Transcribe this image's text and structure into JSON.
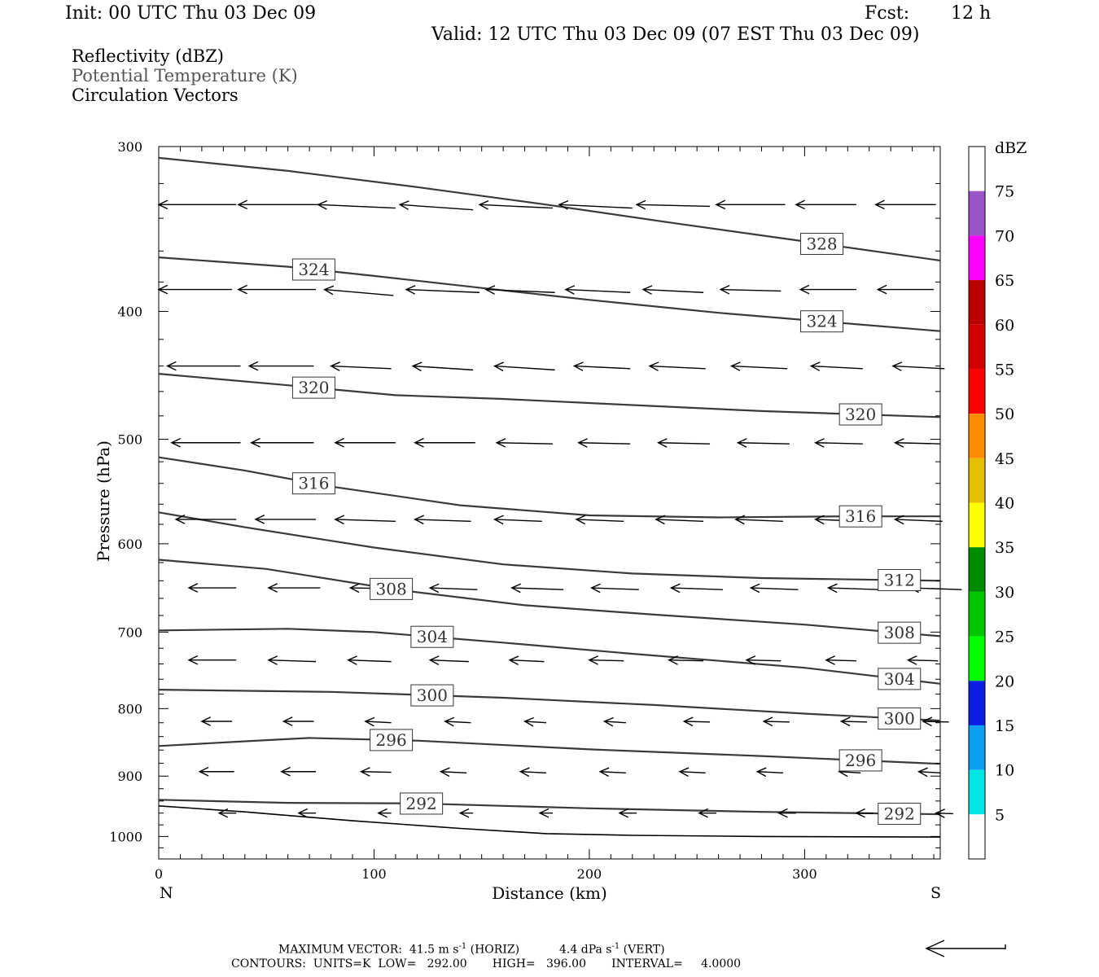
{
  "header": {
    "init": "Init: 00 UTC Thu 03 Dec 09",
    "fcst_label": "Fcst:",
    "fcst_value": "12 h",
    "valid": "Valid: 12 UTC Thu 03 Dec 09 (07 EST Thu 03 Dec 09)"
  },
  "legend_titles": {
    "reflectivity": "Reflectivity (dBZ)",
    "potential_temperature": "Potential Temperature (K)",
    "circulation": "Circulation Vectors"
  },
  "footer": {
    "max_vector_label": "MAXIMUM VECTOR:",
    "max_vector_horiz": "41.5 m s",
    "horiz_tag": "(HORIZ)",
    "max_vector_vert": "4.4 dPa s",
    "vert_tag": "(VERT)",
    "exp": "-1",
    "contours": "CONTOURS:  UNITS=K  LOW=   292.00       HIGH=   396.00       INTERVAL=     4.0000"
  },
  "colors": {
    "contour": "#3a3a3a",
    "vector": "#000000",
    "frame": "#000000"
  },
  "chart_data": {
    "type": "line",
    "title": "",
    "xlabel": "Distance (km)",
    "ylabel": "Pressure (hPa)",
    "xlim": [
      0,
      363
    ],
    "ylim": [
      1040,
      300
    ],
    "y_log_scale": true,
    "x_ticks": [
      0,
      100,
      200,
      300
    ],
    "x_tick_labels": [
      "0",
      "100",
      "200",
      "300"
    ],
    "x_end_labels": {
      "left": "N",
      "right": "S"
    },
    "y_ticks": [
      300,
      400,
      500,
      600,
      700,
      800,
      900,
      1000
    ],
    "y_tick_labels": [
      "300",
      "400",
      "500",
      "600",
      "700",
      "800",
      "900",
      "1000"
    ],
    "series": [
      {
        "name": "328",
        "label_at_x": 308,
        "points": [
          [
            0,
            306
          ],
          [
            60,
            313
          ],
          [
            120,
            322
          ],
          [
            180,
            332
          ],
          [
            240,
            343
          ],
          [
            300,
            354
          ],
          [
            363,
            366
          ]
        ]
      },
      {
        "name": "324",
        "label_at_x": [
          72,
          308
        ],
        "points": [
          [
            0,
            364
          ],
          [
            60,
            370
          ],
          [
            100,
            376
          ],
          [
            150,
            384
          ],
          [
            200,
            392
          ],
          [
            260,
            401
          ],
          [
            300,
            406
          ],
          [
            363,
            414
          ]
        ]
      },
      {
        "name": "320",
        "label_at_x": [
          72,
          326
        ],
        "points": [
          [
            0,
            446
          ],
          [
            60,
            455
          ],
          [
            110,
            463
          ],
          [
            160,
            466
          ],
          [
            220,
            471
          ],
          [
            280,
            476
          ],
          [
            363,
            481
          ]
        ]
      },
      {
        "name": "316",
        "label_at_x": [
          72,
          326
        ],
        "points": [
          [
            0,
            516
          ],
          [
            40,
            528
          ],
          [
            80,
            543
          ],
          [
            140,
            561
          ],
          [
            200,
            571
          ],
          [
            260,
            573
          ],
          [
            320,
            572
          ],
          [
            363,
            572
          ]
        ]
      },
      {
        "name": "312",
        "label_at_x": 344,
        "points": [
          [
            0,
            568
          ],
          [
            40,
            583
          ],
          [
            100,
            604
          ],
          [
            160,
            622
          ],
          [
            220,
            632
          ],
          [
            280,
            637
          ],
          [
            363,
            640
          ]
        ]
      },
      {
        "name": "308",
        "label_at_x": [
          108,
          344
        ],
        "points": [
          [
            0,
            617
          ],
          [
            50,
            627
          ],
          [
            110,
            650
          ],
          [
            170,
            668
          ],
          [
            230,
            679
          ],
          [
            300,
            691
          ],
          [
            363,
            705
          ]
        ]
      },
      {
        "name": "304",
        "label_at_x": [
          127,
          344
        ],
        "points": [
          [
            0,
            698
          ],
          [
            60,
            696
          ],
          [
            100,
            700
          ],
          [
            160,
            713
          ],
          [
            220,
            727
          ],
          [
            300,
            745
          ],
          [
            363,
            766
          ]
        ]
      },
      {
        "name": "300",
        "label_at_x": [
          127,
          344
        ],
        "points": [
          [
            0,
            774
          ],
          [
            80,
            777
          ],
          [
            160,
            785
          ],
          [
            230,
            795
          ],
          [
            300,
            807
          ],
          [
            363,
            817
          ]
        ]
      },
      {
        "name": "296",
        "label_at_x": [
          108,
          326
        ],
        "points": [
          [
            0,
            854
          ],
          [
            40,
            847
          ],
          [
            70,
            842
          ],
          [
            120,
            846
          ],
          [
            200,
            859
          ],
          [
            280,
            869
          ],
          [
            363,
            881
          ]
        ]
      },
      {
        "name": "292",
        "label_at_x": [
          122,
          344
        ],
        "points": [
          [
            0,
            938
          ],
          [
            60,
            943
          ],
          [
            120,
            944
          ],
          [
            200,
            952
          ],
          [
            280,
            958
          ],
          [
            363,
            962
          ]
        ]
      },
      {
        "name": "terrain",
        "points": [
          [
            0,
            948
          ],
          [
            40,
            958
          ],
          [
            90,
            973
          ],
          [
            140,
            986
          ],
          [
            180,
            995
          ],
          [
            220,
            998
          ],
          [
            280,
            1000
          ],
          [
            363,
            1001
          ]
        ]
      }
    ],
    "vectors": {
      "description": "wind vectors; u in km-units of length, v in hPa",
      "rows": [
        {
          "p": 332,
          "items": [
            [
              0,
              -36,
              0
            ],
            [
              37,
              -37,
              0
            ],
            [
              74,
              -36,
              -2
            ],
            [
              112,
              -34,
              -3
            ],
            [
              149,
              -34,
              -2
            ],
            [
              186,
              -34,
              -2
            ],
            [
              222,
              -34,
              -1
            ],
            [
              259,
              -32,
              0
            ],
            [
              296,
              -28,
              0
            ],
            [
              333,
              -28,
              0
            ]
          ]
        },
        {
          "p": 385,
          "items": [
            [
              0,
              -34,
              0
            ],
            [
              37,
              -36,
              0
            ],
            [
              77,
              -32,
              -4
            ],
            [
              115,
              -34,
              -2
            ],
            [
              152,
              -32,
              -2
            ],
            [
              189,
              -30,
              -2
            ],
            [
              225,
              -28,
              -2
            ],
            [
              261,
              -28,
              -1
            ],
            [
              298,
              -26,
              0
            ],
            [
              334,
              -26,
              0
            ]
          ]
        },
        {
          "p": 440,
          "items": [
            [
              4,
              -34,
              0
            ],
            [
              42,
              -30,
              0
            ],
            [
              80,
              -28,
              -2
            ],
            [
              118,
              -28,
              -3
            ],
            [
              156,
              -28,
              -3
            ],
            [
              193,
              -26,
              -2
            ],
            [
              228,
              -26,
              -2
            ],
            [
              266,
              -26,
              -2
            ],
            [
              303,
              -24,
              -2
            ],
            [
              341,
              -24,
              -2
            ]
          ]
        },
        {
          "p": 503,
          "items": [
            [
              6,
              -32,
              0
            ],
            [
              43,
              -29,
              0
            ],
            [
              82,
              -28,
              0
            ],
            [
              119,
              -28,
              0
            ],
            [
              157,
              -26,
              -1
            ],
            [
              195,
              -24,
              -1
            ],
            [
              232,
              -24,
              -1
            ],
            [
              269,
              -24,
              -1
            ],
            [
              305,
              -22,
              -1
            ],
            [
              342,
              -21,
              -1
            ]
          ]
        },
        {
          "p": 575,
          "items": [
            [
              8,
              -28,
              0
            ],
            [
              45,
              -28,
              0
            ],
            [
              82,
              -28,
              -2
            ],
            [
              119,
              -26,
              -2
            ],
            [
              156,
              -22,
              -2
            ],
            [
              194,
              -22,
              -2
            ],
            [
              231,
              -22,
              -2
            ],
            [
              268,
              -22,
              -2
            ],
            [
              305,
              -22,
              -2
            ],
            [
              342,
              -22,
              -2
            ]
          ]
        },
        {
          "p": 648,
          "items": [
            [
              14,
              -22,
              0
            ],
            [
              51,
              -24,
              0
            ],
            [
              89,
              -22,
              -1
            ],
            [
              126,
              -22,
              -2
            ],
            [
              164,
              -24,
              -2
            ],
            [
              201,
              -22,
              -2
            ],
            [
              238,
              -24,
              -2
            ],
            [
              275,
              -22,
              -2
            ],
            [
              311,
              -24,
              -2
            ],
            [
              349,
              -24,
              -2
            ]
          ]
        },
        {
          "p": 735,
          "items": [
            [
              14,
              -22,
              0
            ],
            [
              51,
              -22,
              -2
            ],
            [
              88,
              -20,
              -2
            ],
            [
              126,
              -18,
              -2
            ],
            [
              163,
              -16,
              -2
            ],
            [
              200,
              -16,
              -1
            ],
            [
              237,
              -16,
              -1
            ],
            [
              273,
              -16,
              -1
            ],
            [
              310,
              -14,
              -1
            ],
            [
              348,
              -14,
              -1
            ]
          ]
        },
        {
          "p": 818,
          "items": [
            [
              20,
              -14,
              0
            ],
            [
              58,
              -14,
              0
            ],
            [
              96,
              -12,
              -2
            ],
            [
              133,
              -12,
              -2
            ],
            [
              170,
              -10,
              -2
            ],
            [
              207,
              -10,
              -2
            ],
            [
              244,
              -12,
              -1
            ],
            [
              281,
              -12,
              -1
            ],
            [
              317,
              -12,
              -1
            ],
            [
              355,
              -12,
              -1
            ]
          ]
        },
        {
          "p": 893,
          "items": [
            [
              19,
              -16,
              0
            ],
            [
              57,
              -16,
              0
            ],
            [
              94,
              -14,
              -1
            ],
            [
              131,
              -12,
              -2
            ],
            [
              168,
              -12,
              -2
            ],
            [
              205,
              -12,
              -2
            ],
            [
              242,
              -12,
              -2
            ],
            [
              278,
              -12,
              -2
            ],
            [
              316,
              -10,
              -2
            ],
            [
              353,
              -10,
              -2
            ]
          ]
        },
        {
          "p": 960,
          "items": [
            [
              28,
              -8,
              0
            ],
            [
              65,
              -8,
              0
            ],
            [
              102,
              -6,
              0
            ],
            [
              140,
              -6,
              0
            ],
            [
              177,
              -6,
              0
            ],
            [
              214,
              -8,
              0
            ],
            [
              251,
              -8,
              0
            ],
            [
              288,
              -8,
              0
            ],
            [
              324,
              -8,
              0
            ],
            [
              361,
              -8,
              -1
            ]
          ]
        }
      ]
    },
    "colorbar": {
      "unit_label": "dBZ",
      "levels": [
        "5",
        "10",
        "15",
        "20",
        "25",
        "30",
        "35",
        "40",
        "45",
        "50",
        "55",
        "60",
        "65",
        "70",
        "75"
      ],
      "colors": [
        "#ffffff",
        "#00e5e5",
        "#0ea0f0",
        "#0a1ee6",
        "#00ff00",
        "#00c800",
        "#008c00",
        "#ffff00",
        "#e5bf00",
        "#ff8c00",
        "#ff0000",
        "#d40000",
        "#bb0000",
        "#ff00ff",
        "#9a55c8",
        "#ffffff"
      ]
    },
    "reference_vector_arrow": true
  }
}
